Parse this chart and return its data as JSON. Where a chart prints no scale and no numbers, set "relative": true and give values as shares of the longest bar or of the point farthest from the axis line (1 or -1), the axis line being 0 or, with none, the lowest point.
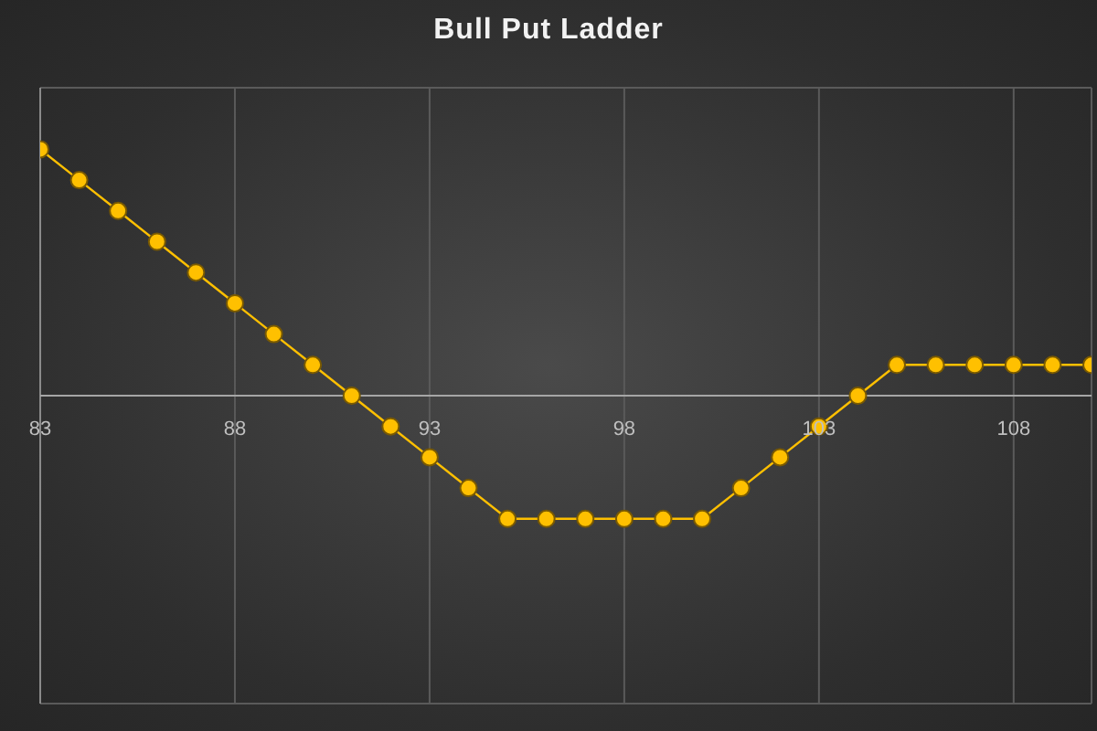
{
  "chart_data": {
    "type": "line",
    "title": "Bull Put Ladder",
    "relative": true,
    "xlim": [
      83,
      110
    ],
    "xticks": [
      83,
      88,
      93,
      98,
      103,
      108
    ],
    "grid": true,
    "marker": "circle",
    "line_style": "solid",
    "legend": false,
    "x": [
      83,
      84,
      85,
      86,
      87,
      88,
      89,
      90,
      91,
      92,
      93,
      94,
      95,
      96,
      97,
      98,
      99,
      100,
      101,
      102,
      103,
      104,
      105,
      106,
      107,
      108,
      109,
      110
    ],
    "series": [
      {
        "color": "#ffc000",
        "values": [
          1,
          0.875,
          0.75,
          0.625,
          0.5,
          0.375,
          0.25,
          0.125,
          0,
          -0.125,
          -0.25,
          -0.375,
          -0.5,
          -0.5,
          -0.5,
          -0.5,
          -0.5,
          -0.5,
          -0.375,
          -0.25,
          -0.125,
          0,
          0.125,
          0.125,
          0.125,
          0.125,
          0.125,
          0.125
        ]
      }
    ]
  }
}
